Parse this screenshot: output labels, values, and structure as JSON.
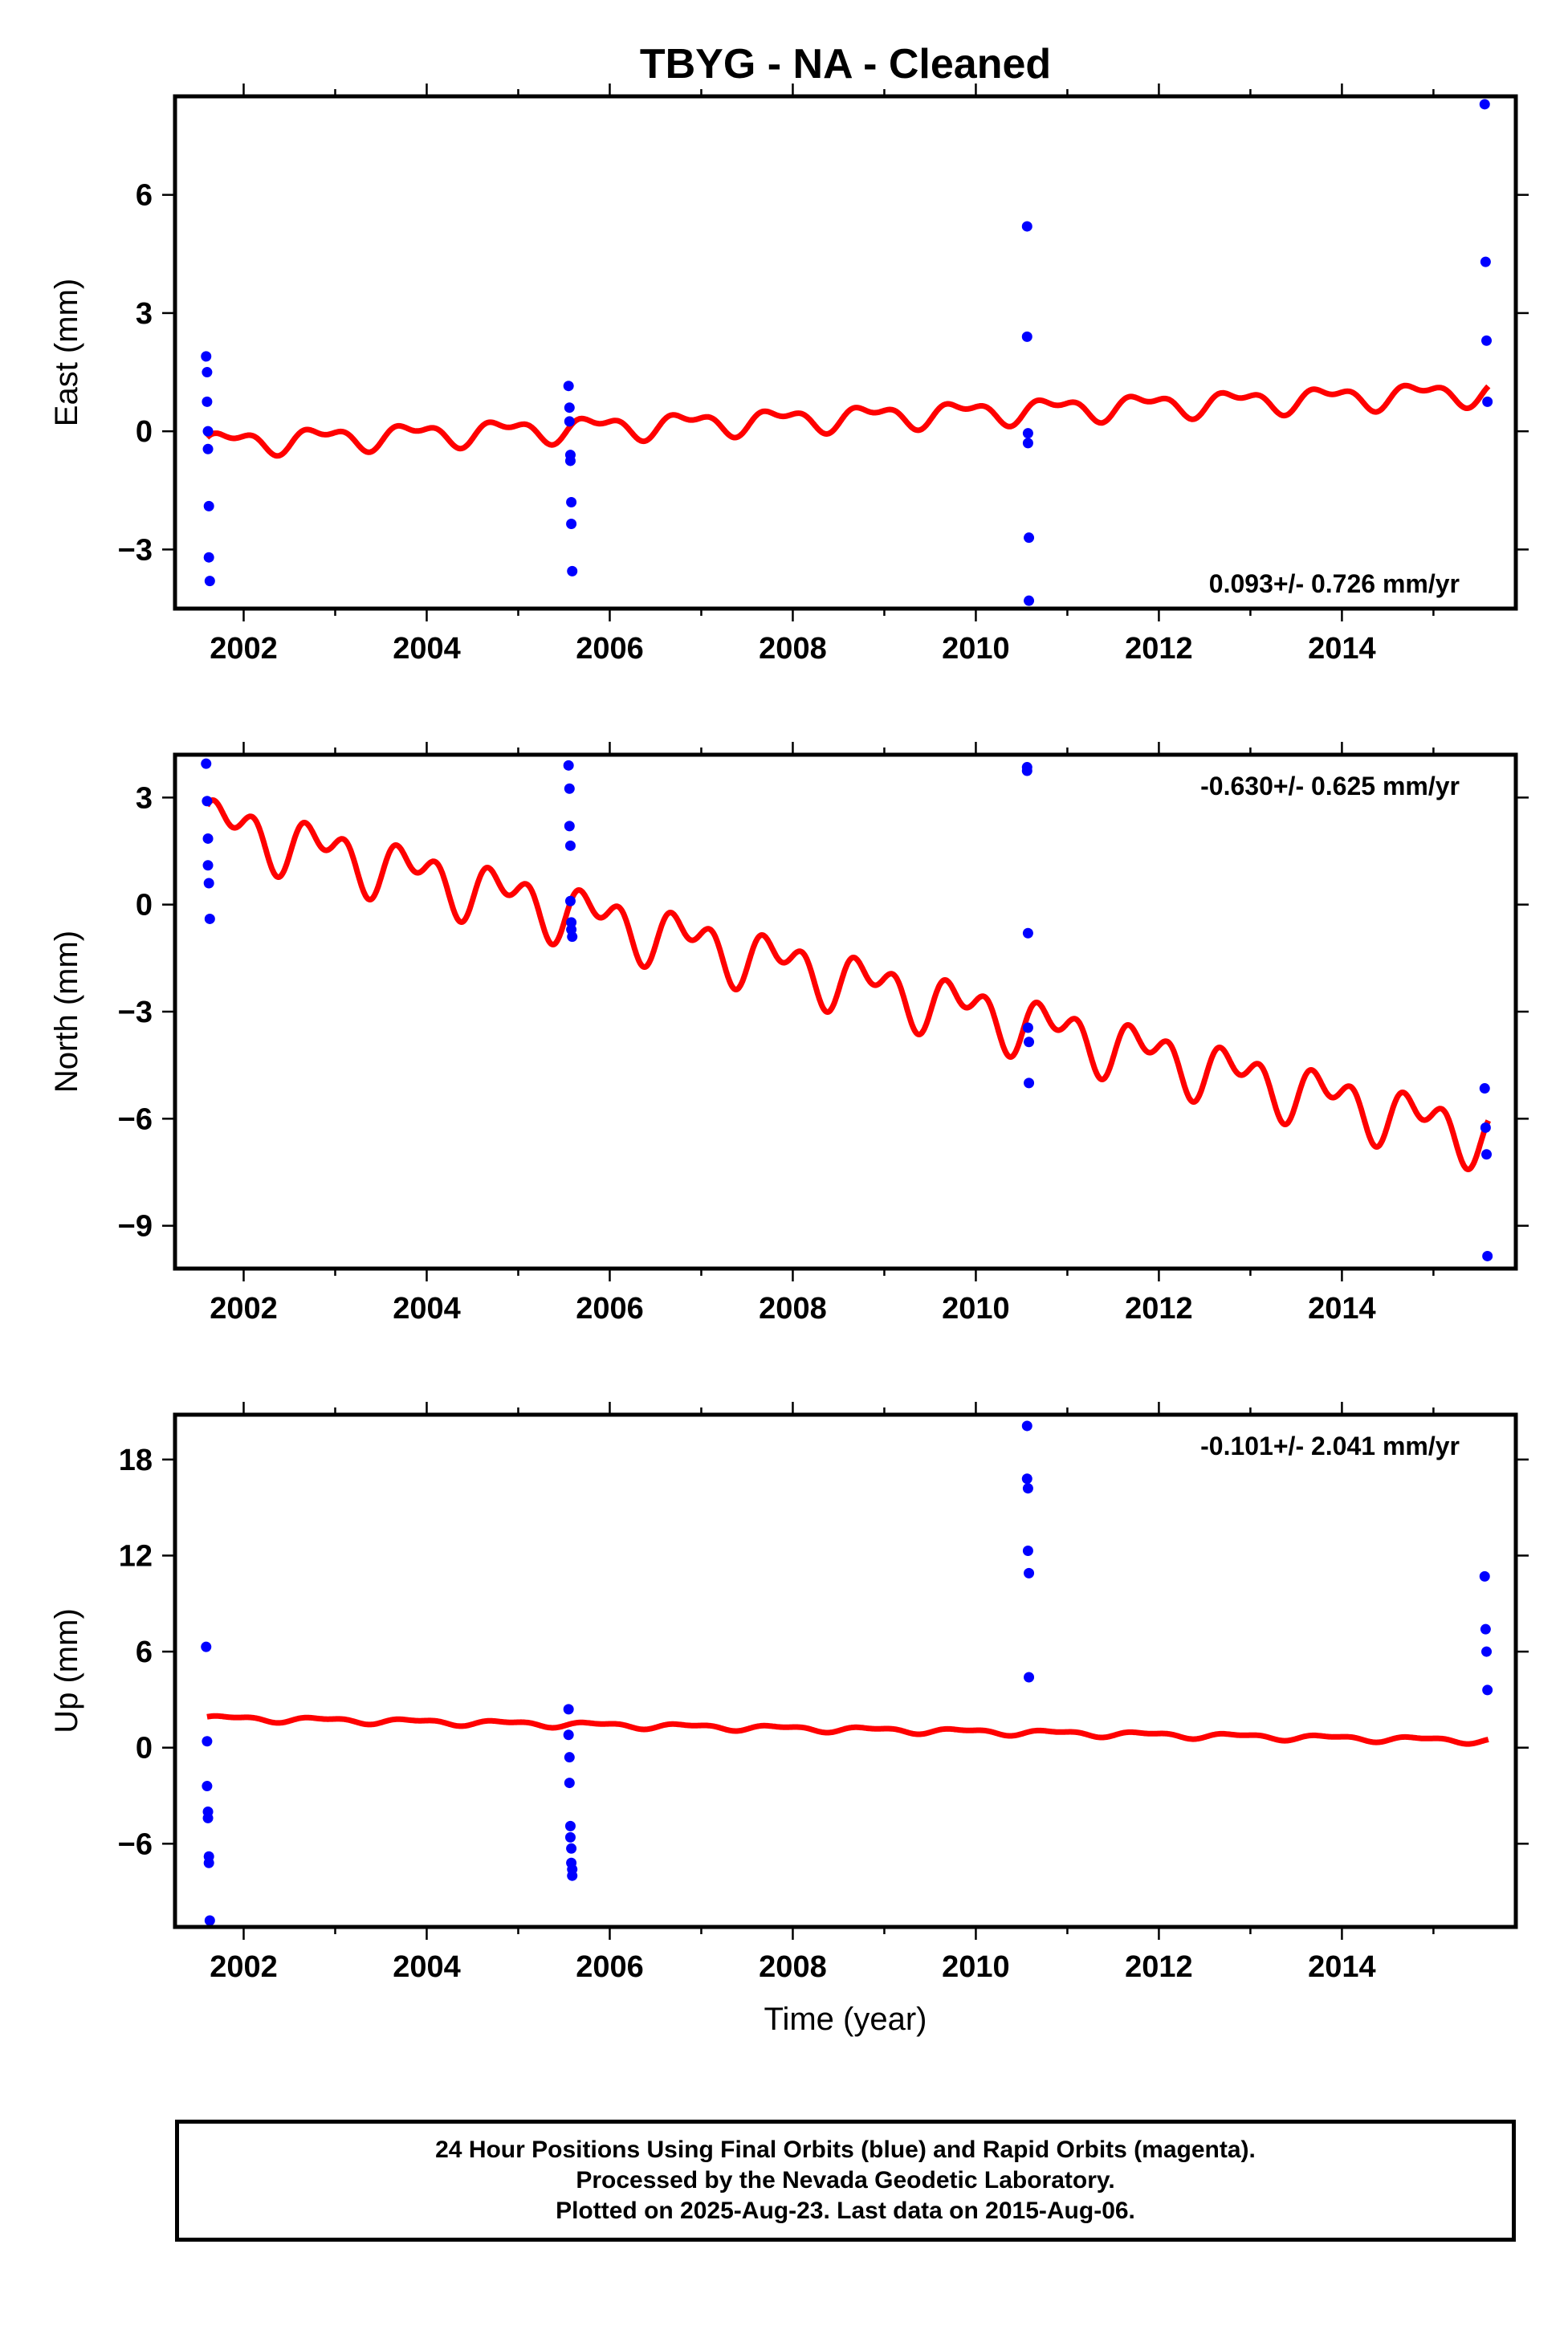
{
  "title": "TBYG  - NA - Cleaned",
  "colors": {
    "final": "#0000ff",
    "model": "#ff0000",
    "frame": "#000000"
  },
  "chart_data": [
    {
      "type": "scatter",
      "name": "east",
      "ylabel": "East (mm)",
      "xlabel": "",
      "xlim": [
        2001.25,
        2015.9
      ],
      "ylim": [
        -4.5,
        8.5
      ],
      "xticks": [
        2002,
        2004,
        2006,
        2008,
        2010,
        2012,
        2014
      ],
      "yticks": [
        -3,
        0,
        3,
        6
      ],
      "rate_label": "0.093+/- 0.726 mm/yr",
      "rate_position": "bottom-right",
      "points": {
        "x": [
          2001.59,
          2001.6,
          2001.6,
          2001.61,
          2001.61,
          2001.62,
          2001.62,
          2001.63,
          2005.55,
          2005.56,
          2005.56,
          2005.57,
          2005.57,
          2005.58,
          2005.58,
          2005.59,
          2010.56,
          2010.56,
          2010.57,
          2010.57,
          2010.58,
          2010.58,
          2015.56,
          2015.57,
          2015.58,
          2015.59
        ],
        "y": [
          1.9,
          1.5,
          0.75,
          0.0,
          -0.45,
          -1.9,
          -3.2,
          -3.8,
          1.15,
          0.6,
          0.25,
          -0.6,
          -0.75,
          -1.8,
          -2.35,
          -3.55,
          5.2,
          2.4,
          -0.05,
          -0.3,
          -2.7,
          -4.3,
          8.3,
          4.3,
          2.3,
          0.75
        ]
      },
      "model": {
        "start": 2001.6,
        "end": 2015.6,
        "offset_at_start": -0.3,
        "rate": 0.093,
        "annual_amp": 0.25,
        "semiannual_amp": 0.15
      }
    },
    {
      "type": "scatter",
      "name": "north",
      "ylabel": "North (mm)",
      "xlabel": "",
      "xlim": [
        2001.25,
        2015.9
      ],
      "ylim": [
        -10.2,
        4.2
      ],
      "xticks": [
        2002,
        2004,
        2006,
        2008,
        2010,
        2012,
        2014
      ],
      "yticks": [
        -9,
        -6,
        -3,
        0,
        3
      ],
      "rate_label": "-0.630+/- 0.625 mm/yr",
      "rate_position": "top-right",
      "points": {
        "x": [
          2001.59,
          2001.6,
          2001.61,
          2001.61,
          2001.62,
          2001.63,
          2005.55,
          2005.56,
          2005.56,
          2005.57,
          2005.57,
          2005.58,
          2005.58,
          2005.59,
          2010.56,
          2010.56,
          2010.57,
          2010.57,
          2010.58,
          2010.58,
          2015.56,
          2015.57,
          2015.58,
          2015.59
        ],
        "y": [
          3.95,
          2.9,
          1.85,
          1.1,
          0.6,
          -0.4,
          3.9,
          3.25,
          2.2,
          1.65,
          0.1,
          -0.5,
          -0.7,
          -0.9,
          3.85,
          3.75,
          -0.8,
          -3.45,
          -3.85,
          -5.0,
          -5.15,
          -6.25,
          -7.0,
          -9.85
        ]
      },
      "model": {
        "start": 2001.6,
        "end": 2015.6,
        "offset_at_start": 2.3,
        "rate": -0.63,
        "annual_amp": 0.55,
        "semiannual_amp": 0.5
      }
    },
    {
      "type": "scatter",
      "name": "up",
      "ylabel": "Up (mm)",
      "xlabel": "Time (year)",
      "xlim": [
        2001.25,
        2015.9
      ],
      "ylim": [
        -11.2,
        20.8
      ],
      "xticks": [
        2002,
        2004,
        2006,
        2008,
        2010,
        2012,
        2014
      ],
      "yticks": [
        -6,
        0,
        6,
        12,
        18
      ],
      "rate_label": "-0.101+/- 2.041 mm/yr",
      "rate_position": "top-right",
      "points": {
        "x": [
          2001.59,
          2001.6,
          2001.6,
          2001.61,
          2001.61,
          2001.62,
          2001.62,
          2001.63,
          2005.55,
          2005.55,
          2005.56,
          2005.56,
          2005.57,
          2005.57,
          2005.58,
          2005.58,
          2005.59,
          2005.59,
          2010.56,
          2010.56,
          2010.57,
          2010.57,
          2010.58,
          2010.58,
          2015.56,
          2015.57,
          2015.58,
          2015.59
        ],
        "y": [
          6.3,
          0.4,
          -2.4,
          -4.0,
          -4.4,
          -6.8,
          -7.2,
          -10.8,
          2.4,
          0.8,
          -0.6,
          -2.2,
          -4.9,
          -5.6,
          -6.3,
          -7.2,
          -7.6,
          -8.0,
          20.1,
          16.8,
          16.2,
          12.3,
          10.9,
          4.4,
          10.7,
          7.4,
          6.0,
          3.6
        ]
      },
      "model": {
        "start": 2001.6,
        "end": 2015.6,
        "offset_at_start": 1.85,
        "rate": -0.101,
        "annual_amp": 0.15,
        "semiannual_amp": 0.08
      }
    }
  ],
  "footer": {
    "line1": "24 Hour Positions Using Final Orbits (blue) and Rapid Orbits (magenta).",
    "line2": "Processed by the Nevada Geodetic Laboratory.",
    "line3": "Plotted on 2025-Aug-23. Last data on 2015-Aug-06."
  }
}
